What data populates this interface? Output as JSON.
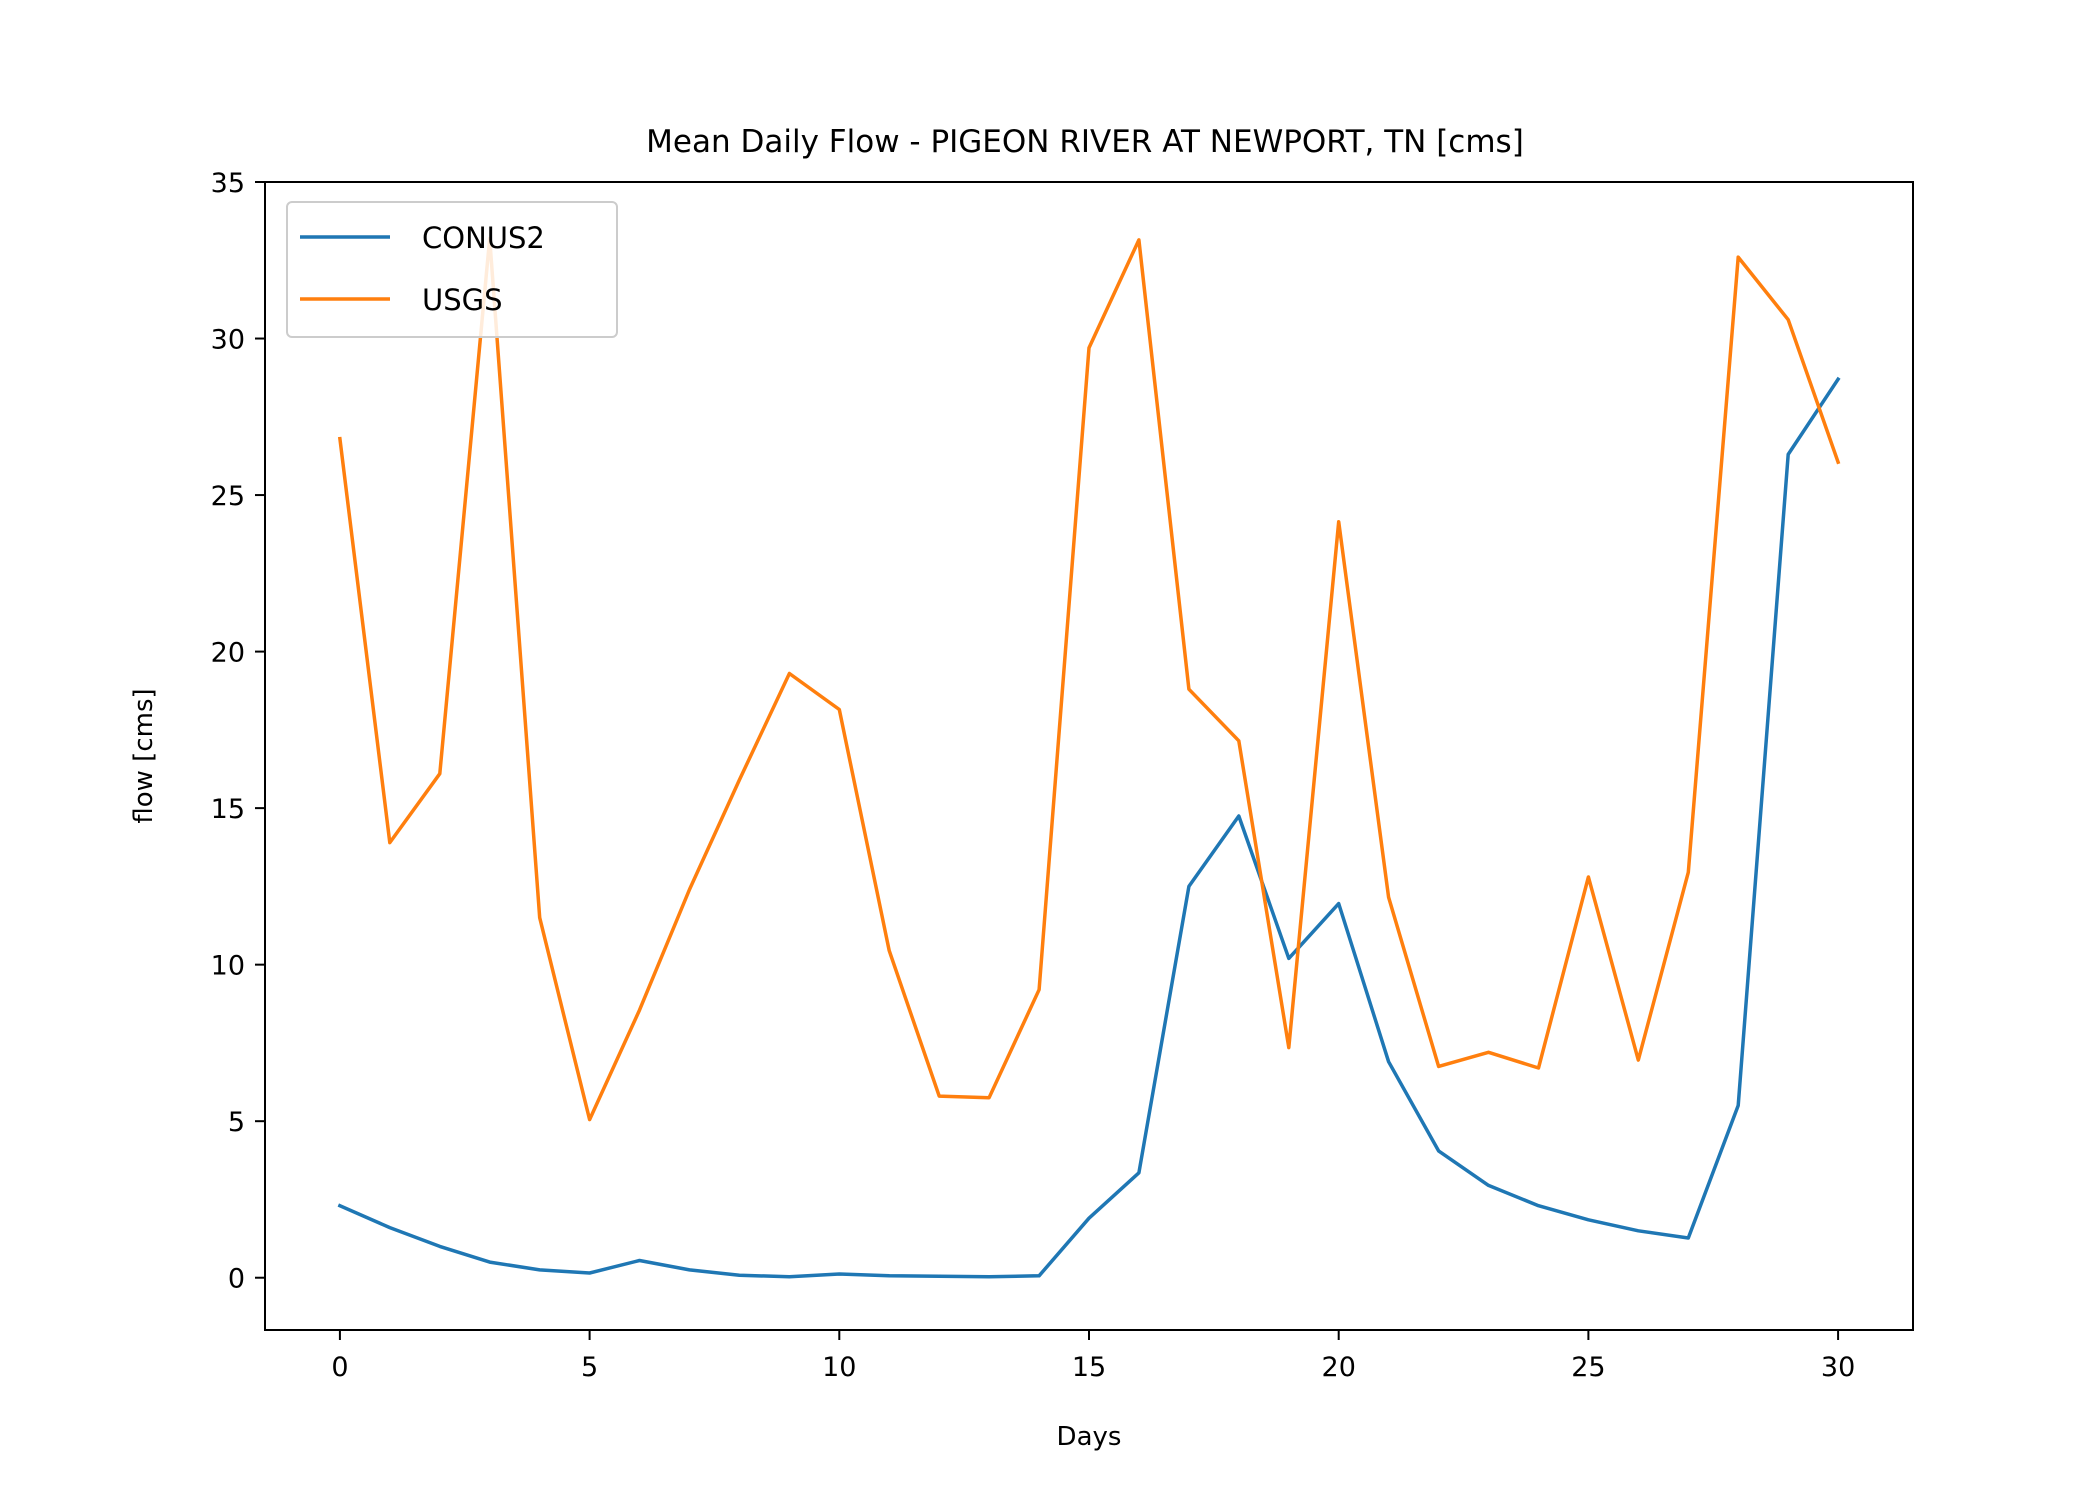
{
  "chart_data": {
    "type": "line",
    "title": "Mean Daily Flow - PIGEON RIVER AT NEWPORT, TN [cms]",
    "xlabel": "Days",
    "ylabel": "flow [cms]",
    "xlim": [
      -1.5,
      31.5
    ],
    "ylim": [
      -1.67,
      35
    ],
    "xticks": [
      0,
      5,
      10,
      15,
      20,
      25,
      30
    ],
    "yticks": [
      0,
      5,
      10,
      15,
      20,
      25,
      30,
      35
    ],
    "grid": false,
    "legend_position": "upper left",
    "x": [
      0,
      1,
      2,
      3,
      4,
      5,
      6,
      7,
      8,
      9,
      10,
      11,
      12,
      13,
      14,
      15,
      16,
      17,
      18,
      19,
      20,
      21,
      22,
      23,
      24,
      25,
      26,
      27,
      28,
      29,
      30
    ],
    "series": [
      {
        "name": "CONUS2",
        "color": "#1f77b4",
        "values": [
          2.3,
          1.6,
          1.0,
          0.5,
          0.25,
          0.15,
          0.55,
          0.25,
          0.08,
          0.03,
          0.12,
          0.06,
          0.05,
          0.03,
          0.06,
          1.9,
          3.35,
          12.5,
          14.75,
          10.2,
          11.95,
          6.9,
          4.05,
          2.95,
          2.3,
          1.85,
          1.5,
          1.27,
          5.5,
          26.3,
          28.7
        ]
      },
      {
        "name": "USGS",
        "color": "#ff7f0e",
        "values": [
          26.8,
          13.9,
          16.1,
          33.2,
          11.5,
          5.05,
          8.55,
          12.4,
          15.9,
          19.3,
          18.15,
          10.45,
          5.8,
          5.75,
          9.2,
          29.7,
          33.15,
          18.8,
          17.15,
          7.35,
          24.15,
          12.15,
          6.75,
          7.2,
          6.7,
          12.8,
          6.95,
          12.95,
          32.6,
          30.6,
          26.05
        ]
      }
    ]
  }
}
